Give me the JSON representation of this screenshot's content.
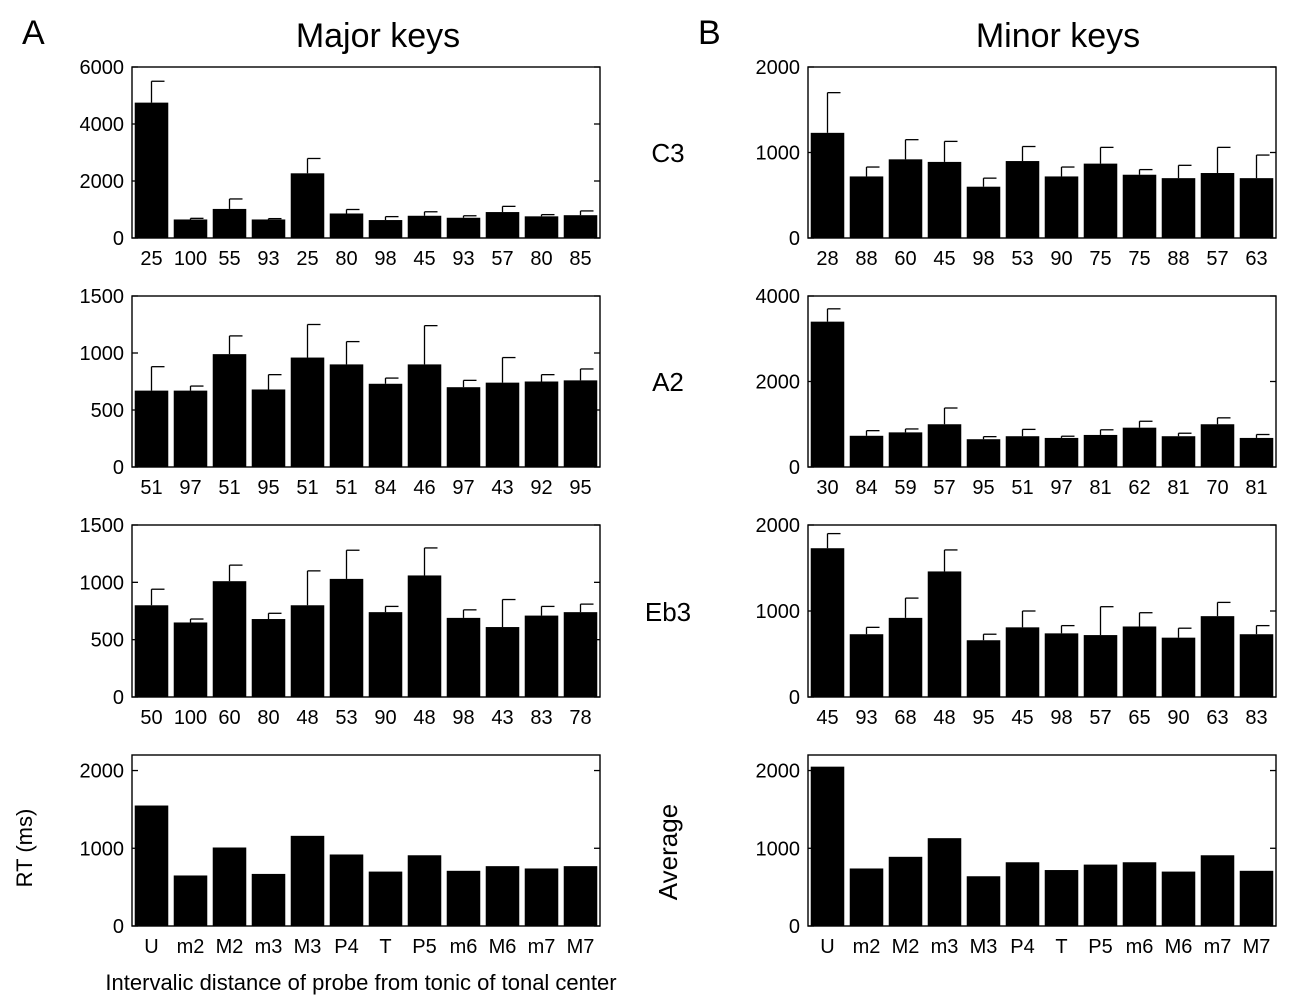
{
  "figure": {
    "panel_labels": [
      "A",
      "B"
    ],
    "column_titles": [
      "Major keys",
      "Minor keys"
    ],
    "row_labels": [
      "C3",
      "A2",
      "Eb3"
    ],
    "average_label": "Average",
    "ylabel": "RT (ms)",
    "xlabel": "Intervalic distance of probe from tonic of tonal center",
    "bar_color": "#000000"
  },
  "chart_data": [
    {
      "type": "bar",
      "column": "Major keys",
      "row_label": "C3",
      "categories": [
        "25",
        "100",
        "55",
        "93",
        "25",
        "80",
        "98",
        "45",
        "93",
        "57",
        "80",
        "85"
      ],
      "values": [
        4750,
        650,
        1020,
        650,
        2270,
        860,
        630,
        780,
        710,
        910,
        760,
        800
      ],
      "error": [
        750,
        40,
        350,
        30,
        520,
        140,
        120,
        140,
        70,
        200,
        60,
        150
      ],
      "ylim": [
        0,
        6000
      ],
      "yticks": [
        0,
        2000,
        4000,
        6000
      ]
    },
    {
      "type": "bar",
      "column": "Major keys",
      "row_label": "A2",
      "categories": [
        "51",
        "97",
        "51",
        "95",
        "51",
        "51",
        "84",
        "46",
        "97",
        "43",
        "92",
        "95"
      ],
      "values": [
        670,
        670,
        990,
        680,
        960,
        900,
        730,
        900,
        700,
        740,
        750,
        760
      ],
      "error": [
        210,
        40,
        160,
        130,
        290,
        200,
        50,
        340,
        60,
        220,
        60,
        100
      ],
      "ylim": [
        0,
        1500
      ],
      "yticks": [
        0,
        500,
        1000,
        1500
      ]
    },
    {
      "type": "bar",
      "column": "Major keys",
      "row_label": "Eb3",
      "categories": [
        "50",
        "100",
        "60",
        "80",
        "48",
        "53",
        "90",
        "48",
        "98",
        "43",
        "83",
        "78"
      ],
      "values": [
        800,
        650,
        1010,
        680,
        800,
        1030,
        740,
        1060,
        690,
        610,
        710,
        740
      ],
      "error": [
        140,
        30,
        140,
        50,
        300,
        250,
        50,
        240,
        70,
        240,
        80,
        70
      ],
      "ylim": [
        0,
        1500
      ],
      "yticks": [
        0,
        500,
        1000,
        1500
      ]
    },
    {
      "type": "bar",
      "column": "Major keys",
      "row_label": "Average",
      "categories": [
        "U",
        "m2",
        "M2",
        "m3",
        "M3",
        "P4",
        "T",
        "P5",
        "m6",
        "M6",
        "m7",
        "M7"
      ],
      "values": [
        1550,
        650,
        1010,
        670,
        1160,
        920,
        700,
        910,
        710,
        770,
        740,
        770
      ],
      "ylim": [
        0,
        2200
      ],
      "yticks": [
        0,
        1000,
        2000
      ]
    },
    {
      "type": "bar",
      "column": "Minor keys",
      "row_label": "C3",
      "categories": [
        "28",
        "88",
        "60",
        "45",
        "98",
        "53",
        "90",
        "75",
        "75",
        "88",
        "57",
        "63"
      ],
      "values": [
        1230,
        720,
        920,
        890,
        600,
        900,
        720,
        870,
        740,
        700,
        760,
        700
      ],
      "error": [
        470,
        110,
        230,
        240,
        100,
        170,
        110,
        190,
        60,
        150,
        300,
        270
      ],
      "ylim": [
        0,
        2000
      ],
      "yticks": [
        0,
        1000,
        2000
      ]
    },
    {
      "type": "bar",
      "column": "Minor keys",
      "row_label": "A2",
      "categories": [
        "30",
        "84",
        "59",
        "57",
        "95",
        "51",
        "97",
        "81",
        "62",
        "81",
        "70",
        "81"
      ],
      "values": [
        3400,
        730,
        810,
        1000,
        650,
        720,
        680,
        750,
        920,
        720,
        1000,
        680
      ],
      "error": [
        300,
        120,
        80,
        380,
        60,
        160,
        40,
        120,
        150,
        70,
        150,
        80
      ],
      "ylim": [
        0,
        4000
      ],
      "yticks": [
        0,
        2000,
        4000
      ]
    },
    {
      "type": "bar",
      "column": "Minor keys",
      "row_label": "Eb3",
      "categories": [
        "45",
        "93",
        "68",
        "48",
        "95",
        "45",
        "98",
        "57",
        "65",
        "90",
        "63",
        "83"
      ],
      "values": [
        1730,
        730,
        920,
        1460,
        660,
        810,
        740,
        720,
        820,
        690,
        940,
        730
      ],
      "error": [
        170,
        80,
        230,
        250,
        70,
        190,
        90,
        330,
        160,
        110,
        160,
        100
      ],
      "ylim": [
        0,
        2000
      ],
      "yticks": [
        0,
        1000,
        2000
      ]
    },
    {
      "type": "bar",
      "column": "Minor keys",
      "row_label": "Average",
      "categories": [
        "U",
        "m2",
        "M2",
        "m3",
        "M3",
        "P4",
        "T",
        "P5",
        "m6",
        "M6",
        "m7",
        "M7"
      ],
      "values": [
        2050,
        740,
        890,
        1130,
        640,
        820,
        720,
        790,
        820,
        700,
        910,
        710
      ],
      "ylim": [
        0,
        2200
      ],
      "yticks": [
        0,
        1000,
        2000
      ]
    }
  ]
}
